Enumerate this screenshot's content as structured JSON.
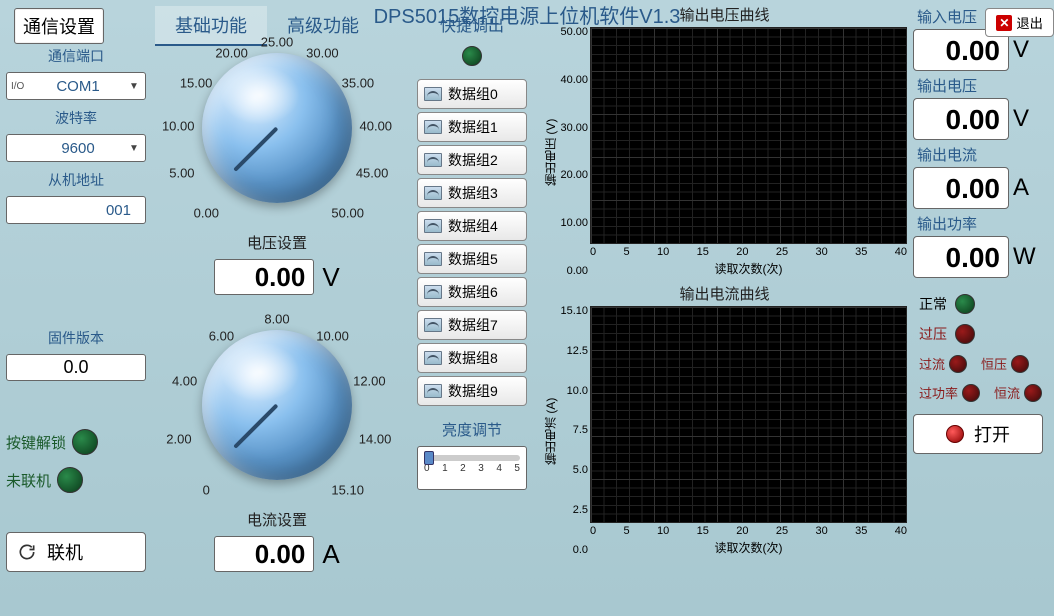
{
  "header": {
    "title": "DPS5015数控电源上位机软件V1.3",
    "exit_label": "退出"
  },
  "tabs": {
    "basic": "基础功能",
    "advanced": "高级功能",
    "active": "basic"
  },
  "comm": {
    "settings_btn": "通信设置",
    "port_label": "通信端口",
    "port_value": "COM1",
    "baud_label": "波特率",
    "baud_value": "9600",
    "slave_label": "从机地址",
    "slave_value": "001",
    "firmware_label": "固件版本",
    "firmware_value": "0.0",
    "key_unlock_label": "按键解锁",
    "not_connected_label": "未联机",
    "connect_btn": "联机"
  },
  "dials": {
    "voltage": {
      "label": "电压设置",
      "value": "0.00",
      "unit": "V",
      "ticks": [
        "0.00",
        "5.00",
        "10.00",
        "15.00",
        "20.00",
        "25.00",
        "30.00",
        "35.00",
        "40.00",
        "45.00",
        "50.00"
      ],
      "min": 0,
      "max": 50,
      "pointer_angle_deg": 45
    },
    "current": {
      "label": "电流设置",
      "value": "0.00",
      "unit": "A",
      "ticks": [
        "0",
        "2.00",
        "4.00",
        "6.00",
        "8.00",
        "10.00",
        "12.00",
        "14.00",
        "15.10"
      ],
      "min": 0,
      "max": 15.1,
      "pointer_angle_deg": 45
    }
  },
  "quick": {
    "title": "快捷调出",
    "presets": [
      "数据组0",
      "数据组1",
      "数据组2",
      "数据组3",
      "数据组4",
      "数据组5",
      "数据组6",
      "数据组7",
      "数据组8",
      "数据组9"
    ],
    "brightness_label": "亮度调节",
    "brightness_value": 0,
    "brightness_ticks": [
      "0",
      "1",
      "2",
      "3",
      "4",
      "5"
    ]
  },
  "charts": {
    "voltage": {
      "title": "输出电压曲线",
      "ylabel": "输出电压 (V)",
      "xlabel": "读取次数(次)",
      "ylim": [
        0,
        50
      ],
      "ytick_step": 10,
      "xlim": [
        0,
        40
      ],
      "xtick_step": 5,
      "background_color": "#000000",
      "grid_color": "#333333"
    },
    "current": {
      "title": "输出电流曲线",
      "ylabel": "输出电流 (A)",
      "xlabel": "读取次数(次)",
      "ylim": [
        0,
        15.1
      ],
      "yticks": [
        "0.0",
        "2.5",
        "5.0",
        "7.5",
        "10.0",
        "12.5",
        "15.10"
      ],
      "xlim": [
        0,
        40
      ],
      "xtick_step": 5,
      "background_color": "#000000",
      "grid_color": "#333333"
    }
  },
  "readouts": {
    "vin_label": "输入电压",
    "vin_value": "0.00",
    "vin_unit": "V",
    "vout_label": "输出电压",
    "vout_value": "0.00",
    "vout_unit": "V",
    "iout_label": "输出电流",
    "iout_value": "0.00",
    "iout_unit": "A",
    "pout_label": "输出功率",
    "pout_value": "0.00",
    "pout_unit": "W"
  },
  "status": {
    "normal": "正常",
    "ov": "过压",
    "oc": "过流",
    "cv": "恒压",
    "op": "过功率",
    "cc": "恒流",
    "power_btn": "打开"
  },
  "colors": {
    "bg_top": "#b8d4dc",
    "accent_text": "#2a5a8a",
    "led_green": "#1a6a3a",
    "led_red": "#8a1a1a"
  }
}
